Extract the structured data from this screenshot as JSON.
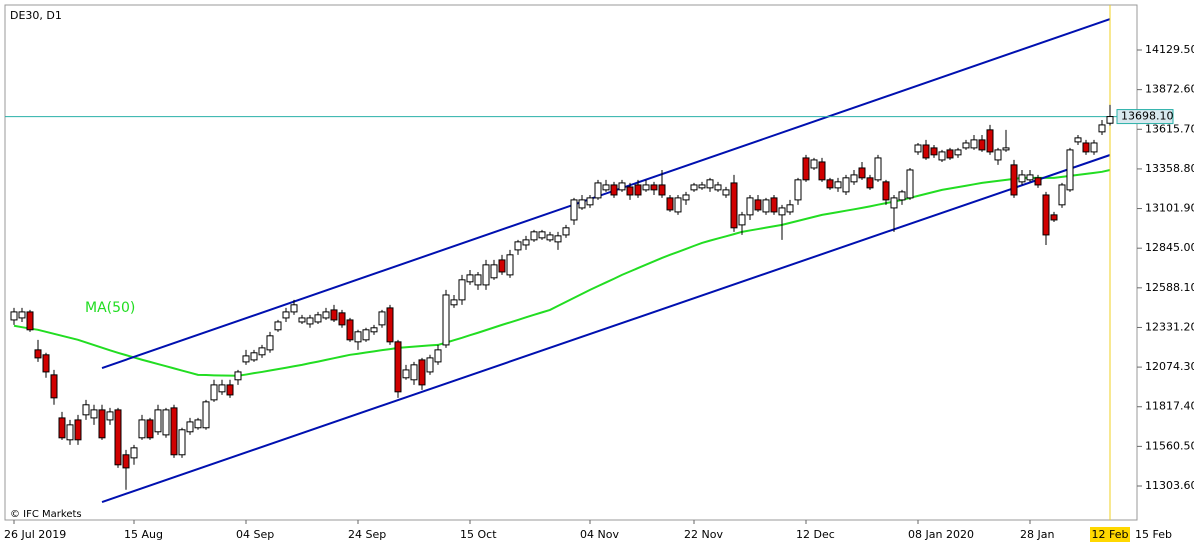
{
  "chart_data": {
    "type": "candlestick",
    "title": "DE30, D1",
    "watermark": "© IFC Markets",
    "categories": [
      "26 Jul 2019",
      null,
      null,
      null,
      null,
      null,
      null,
      null,
      null,
      null,
      null,
      null,
      null,
      null,
      null,
      "15 Aug",
      null,
      null,
      null,
      null,
      null,
      null,
      null,
      null,
      null,
      null,
      null,
      null,
      null,
      "04 Sep",
      null,
      null,
      null,
      null,
      null,
      null,
      null,
      null,
      null,
      null,
      null,
      null,
      null,
      "24 Sep",
      null,
      null,
      null,
      null,
      null,
      null,
      null,
      null,
      null,
      null,
      null,
      null,
      null,
      "15 Oct",
      null,
      null,
      null,
      null,
      null,
      null,
      null,
      null,
      null,
      null,
      null,
      null,
      null,
      null,
      "04 Nov",
      null,
      null,
      null,
      null,
      null,
      null,
      null,
      null,
      null,
      null,
      null,
      null,
      "22 Nov",
      null,
      null,
      null,
      null,
      null,
      null,
      null,
      null,
      null,
      null,
      null,
      null,
      null,
      "12 Dec",
      null,
      null,
      null,
      null,
      null,
      null,
      null,
      null,
      null,
      null,
      null,
      null,
      null,
      "08 Jan 2020",
      null,
      null,
      null,
      null,
      null,
      null,
      null,
      null,
      null,
      null,
      null,
      null,
      null,
      "28 Jan",
      null,
      null,
      null,
      null,
      null,
      null,
      null,
      null,
      null,
      "12 Feb",
      "15 Feb"
    ],
    "open": [
      12380,
      12393,
      12432,
      12186,
      12154,
      12024,
      11745,
      11603,
      11732,
      11765,
      11745,
      11797,
      11732,
      11797,
      11506,
      11486,
      11616,
      11732,
      11655,
      11635,
      11810,
      11506,
      11655,
      11681,
      11681,
      11862,
      11914,
      11959,
      11992,
      12108,
      12121,
      12154,
      12186,
      12316,
      12393,
      12432,
      12367,
      12354,
      12367,
      12393,
      12445,
      12426,
      12380,
      12238,
      12251,
      12303,
      12348,
      12458,
      12238,
      12005,
      11992,
      12121,
      12043,
      12108,
      12218,
      12478,
      12510,
      12627,
      12607,
      12607,
      12653,
      12769,
      12672,
      12834,
      12866,
      12899,
      12912,
      12899,
      12886,
      12931,
      13028,
      13106,
      13126,
      13171,
      13223,
      13255,
      13223,
      13242,
      13255,
      13223,
      13255,
      13255,
      13171,
      13080,
      13158,
      13223,
      13236,
      13236,
      13223,
      13190,
      13268,
      12996,
      13061,
      13158,
      13080,
      13171,
      13061,
      13080,
      13158,
      13430,
      13365,
      13404,
      13288,
      13236,
      13210,
      13275,
      13365,
      13301,
      13288,
      13275,
      13106,
      13158,
      13171,
      13469,
      13514,
      13495,
      13417,
      13482,
      13450,
      13495,
      13495,
      13547,
      13612,
      13417,
      13482,
      13385,
      13275,
      13288,
      13301,
      13190,
      13061,
      13126,
      13223,
      13534,
      13527,
      13469,
      13599,
      13655,
      null
    ],
    "high": [
      12458,
      12458,
      12445,
      12251,
      12167,
      12056,
      11784,
      11732,
      11765,
      11862,
      11830,
      11830,
      11810,
      11810,
      11538,
      11570,
      11765,
      11745,
      11830,
      11810,
      11830,
      11681,
      11745,
      11745,
      11862,
      11992,
      11992,
      11992,
      12056,
      12186,
      12186,
      12218,
      12303,
      12380,
      12458,
      12510,
      12413,
      12413,
      12432,
      12458,
      12478,
      12445,
      12393,
      12316,
      12329,
      12348,
      12445,
      12478,
      12251,
      12089,
      12108,
      12134,
      12154,
      12218,
      12575,
      12542,
      12672,
      12704,
      12691,
      12769,
      12769,
      12802,
      12834,
      12899,
      12925,
      12964,
      12964,
      12951,
      12951,
      12996,
      13171,
      13190,
      13190,
      13288,
      13288,
      13275,
      13288,
      13268,
      13288,
      13288,
      13275,
      13352,
      13190,
      13190,
      13210,
      13268,
      13275,
      13301,
      13275,
      13242,
      13320,
      13080,
      13190,
      13190,
      13171,
      13190,
      13126,
      13158,
      13301,
      13450,
      13430,
      13430,
      13301,
      13301,
      13320,
      13352,
      13404,
      13320,
      13450,
      13288,
      13190,
      13223,
      13365,
      13527,
      13547,
      13514,
      13482,
      13495,
      13495,
      13547,
      13579,
      13579,
      13644,
      13495,
      13612,
      13417,
      13352,
      13352,
      13320,
      13210,
      13080,
      13268,
      13495,
      13579,
      13547,
      13547,
      13676,
      13774,
      null
    ],
    "low": [
      12348,
      12367,
      12303,
      12108,
      12005,
      11830,
      11603,
      11570,
      11570,
      11732,
      11700,
      11603,
      11700,
      11421,
      11279,
      11441,
      11603,
      11603,
      11635,
      11616,
      11486,
      11486,
      11635,
      11668,
      11668,
      11849,
      11894,
      11875,
      11959,
      12089,
      12108,
      12134,
      12167,
      12303,
      12367,
      12413,
      12354,
      12329,
      12354,
      12380,
      12367,
      12329,
      12238,
      12186,
      12238,
      12283,
      12329,
      12218,
      11875,
      11992,
      11959,
      11927,
      12024,
      12089,
      12199,
      12458,
      12478,
      12607,
      12575,
      12575,
      12640,
      12672,
      12653,
      12802,
      12834,
      12886,
      12899,
      12886,
      12834,
      12912,
      12996,
      13093,
      13106,
      13158,
      13210,
      13171,
      13210,
      13158,
      13171,
      13210,
      13190,
      13171,
      13080,
      13061,
      13126,
      13210,
      13223,
      13210,
      13210,
      13171,
      12951,
      12931,
      13028,
      13080,
      13061,
      13061,
      12899,
      13061,
      13126,
      13275,
      13352,
      13275,
      13223,
      13210,
      13190,
      13255,
      13288,
      13223,
      13275,
      13126,
      12951,
      13126,
      13158,
      13450,
      13417,
      13430,
      13404,
      13417,
      13430,
      13482,
      13482,
      13469,
      13450,
      13385,
      13469,
      13171,
      13255,
      13275,
      13236,
      12866,
      13015,
      13106,
      13210,
      13514,
      13450,
      13450,
      13579,
      13640,
      null
    ],
    "close": [
      12432,
      12432,
      12316,
      12134,
      12043,
      11875,
      11616,
      11700,
      11603,
      11830,
      11797,
      11616,
      11784,
      11441,
      11421,
      11551,
      11732,
      11616,
      11797,
      11797,
      11506,
      11668,
      11719,
      11732,
      11849,
      11959,
      11959,
      11894,
      12043,
      12147,
      12167,
      12199,
      12277,
      12367,
      12432,
      12478,
      12393,
      12393,
      12413,
      12432,
      12380,
      12348,
      12251,
      12303,
      12316,
      12329,
      12432,
      12238,
      11914,
      12056,
      12089,
      11959,
      12134,
      12186,
      12542,
      12510,
      12640,
      12672,
      12672,
      12737,
      12737,
      12691,
      12802,
      12886,
      12899,
      12951,
      12951,
      12931,
      12925,
      12977,
      13158,
      13158,
      13171,
      13268,
      13255,
      13190,
      13268,
      13190,
      13190,
      13255,
      13223,
      13190,
      13093,
      13171,
      13190,
      13255,
      13255,
      13288,
      13255,
      13223,
      12977,
      13061,
      13171,
      13093,
      13158,
      13080,
      13106,
      13126,
      13288,
      13288,
      13417,
      13288,
      13236,
      13275,
      13301,
      13320,
      13301,
      13236,
      13430,
      13158,
      13171,
      13210,
      13352,
      13514,
      13430,
      13450,
      13469,
      13430,
      13482,
      13527,
      13547,
      13482,
      13469,
      13482,
      13495,
      13190,
      13320,
      13320,
      13255,
      12931,
      13028,
      13255,
      13482,
      13560,
      13469,
      13527,
      13644,
      13698.1,
      null
    ],
    "up_color": "#ffffff",
    "down_color": "#d00000",
    "indicator": {
      "name": "MA(50)",
      "color": "#22dd22",
      "values": [
        12342,
        12333,
        12324,
        12316,
        12303,
        12290,
        12277,
        12264,
        12251,
        12234,
        12217,
        12200,
        12183,
        12167,
        12152,
        12137,
        12122,
        12108,
        12094,
        12080,
        12066,
        12052,
        12038,
        12024,
        12023,
        12021,
        12020,
        12019,
        12018,
        12026,
        12035,
        12043,
        12052,
        12061,
        12070,
        12080,
        12089,
        12100,
        12110,
        12121,
        12132,
        12143,
        12154,
        12161,
        12169,
        12176,
        12184,
        12191,
        12199,
        12203,
        12207,
        12211,
        12215,
        12218,
        12233,
        12249,
        12264,
        12281,
        12297,
        12314,
        12331,
        12348,
        12364,
        12380,
        12397,
        12413,
        12429,
        12445,
        12471,
        12497,
        12523,
        12549,
        12575,
        12599,
        12623,
        12647,
        12672,
        12694,
        12716,
        12738,
        12760,
        12782,
        12802,
        12821,
        12840,
        12860,
        12879,
        12894,
        12908,
        12922,
        12936,
        12951,
        12960,
        12969,
        12978,
        12987,
        12996,
        13009,
        13022,
        13035,
        13048,
        13061,
        13070,
        13079,
        13088,
        13097,
        13106,
        13116,
        13127,
        13137,
        13147,
        13158,
        13171,
        13184,
        13197,
        13210,
        13223,
        13232,
        13241,
        13250,
        13259,
        13268,
        13275,
        13281,
        13288,
        13294,
        13301,
        13301,
        13301,
        13301,
        13301,
        13307,
        13314,
        13320,
        13327,
        13333,
        13340,
        13352,
        null
      ]
    },
    "channel": {
      "color": "#0010b0",
      "lines": [
        {
          "x": [
            11,
            137
          ],
          "y": [
            12068.4,
            14330.4
          ]
        },
        {
          "x": [
            11,
            137
          ],
          "y": [
            11199.9,
            13449.0
          ]
        }
      ]
    },
    "last_price": {
      "value": 13698.1,
      "label": "13698.10"
    },
    "ylim": [
      11083.3,
      14421.2
    ],
    "yticks": [
      {
        "value": 11303.6,
        "label": "11303.60"
      },
      {
        "value": 11560.5,
        "label": "11560.50"
      },
      {
        "value": 11817.4,
        "label": "11817.40"
      },
      {
        "value": 12074.3,
        "label": "12074.30"
      },
      {
        "value": 12331.2,
        "label": "12331.20"
      },
      {
        "value": 12588.1,
        "label": "12588.10"
      },
      {
        "value": 12845,
        "label": "12845.00"
      },
      {
        "value": 13101.9,
        "label": "13101.90"
      },
      {
        "value": 13358.8,
        "label": "13358.80"
      },
      {
        "value": 13615.7,
        "label": "13615.70"
      },
      {
        "value": 13872.6,
        "label": "13872.60"
      },
      {
        "value": 14129.5,
        "label": "14129.50"
      }
    ]
  }
}
